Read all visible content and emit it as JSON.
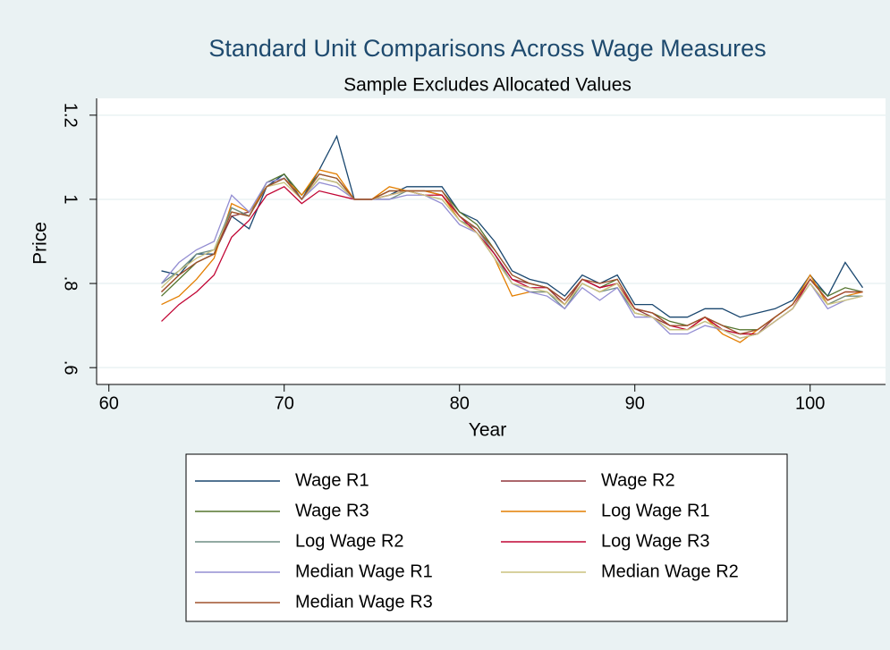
{
  "chart_data": {
    "type": "line",
    "title": "Standard Unit Comparisons Across Wage Measures",
    "subtitle": "Sample Excludes Allocated Values",
    "xlabel": "Year",
    "ylabel": "Price",
    "x": [
      63,
      64,
      65,
      66,
      67,
      68,
      69,
      70,
      71,
      72,
      73,
      74,
      75,
      76,
      77,
      78,
      79,
      80,
      81,
      82,
      83,
      84,
      85,
      86,
      87,
      88,
      89,
      90,
      91,
      92,
      93,
      94,
      95,
      96,
      97,
      98,
      99,
      100,
      101,
      102,
      103
    ],
    "xlim": [
      59.3,
      104.3
    ],
    "xticks": [
      60,
      70,
      80,
      90,
      100
    ],
    "ylim": [
      0.56,
      1.24
    ],
    "yticks": [
      {
        "value": 0.6,
        "label": ".6"
      },
      {
        "value": 0.8,
        "label": ".8"
      },
      1,
      1.2
    ],
    "grid": true,
    "series": [
      {
        "name": "Wage R1",
        "color": "#1a476f",
        "values": [
          0.83,
          0.82,
          0.87,
          0.87,
          0.96,
          0.93,
          1.03,
          1.06,
          1.0,
          1.07,
          1.15,
          1.0,
          1.0,
          1.01,
          1.03,
          1.03,
          1.03,
          0.97,
          0.95,
          0.9,
          0.83,
          0.81,
          0.8,
          0.77,
          0.82,
          0.8,
          0.82,
          0.75,
          0.75,
          0.72,
          0.72,
          0.74,
          0.74,
          0.72,
          0.73,
          0.74,
          0.76,
          0.82,
          0.77,
          0.85,
          0.79
        ]
      },
      {
        "name": "Wage R2",
        "color": "#90353b",
        "values": [
          0.78,
          0.82,
          0.85,
          0.87,
          0.96,
          0.97,
          1.03,
          1.05,
          1.0,
          1.05,
          1.04,
          1.0,
          1.0,
          1.02,
          1.02,
          1.02,
          1.01,
          0.96,
          0.93,
          0.87,
          0.81,
          0.8,
          0.79,
          0.75,
          0.81,
          0.79,
          0.8,
          0.74,
          0.72,
          0.7,
          0.7,
          0.72,
          0.69,
          0.68,
          0.68,
          0.72,
          0.75,
          0.81,
          0.76,
          0.78,
          0.78
        ]
      },
      {
        "name": "Wage R3",
        "color": "#55752f",
        "values": [
          0.77,
          0.81,
          0.85,
          0.87,
          0.98,
          0.96,
          1.04,
          1.06,
          1.01,
          1.06,
          1.05,
          1.0,
          1.0,
          1.02,
          1.02,
          1.02,
          1.02,
          0.97,
          0.94,
          0.88,
          0.82,
          0.8,
          0.79,
          0.76,
          0.81,
          0.79,
          0.81,
          0.74,
          0.73,
          0.71,
          0.7,
          0.72,
          0.7,
          0.69,
          0.69,
          0.72,
          0.75,
          0.81,
          0.77,
          0.79,
          0.78
        ]
      },
      {
        "name": "Log Wage R1",
        "color": "#e37e00",
        "values": [
          0.75,
          0.77,
          0.81,
          0.86,
          0.99,
          0.97,
          1.03,
          1.05,
          1.01,
          1.07,
          1.06,
          1.0,
          1.0,
          1.03,
          1.02,
          1.02,
          1.01,
          0.95,
          0.92,
          0.86,
          0.77,
          0.78,
          0.78,
          0.75,
          0.8,
          0.78,
          0.8,
          0.73,
          0.72,
          0.69,
          0.69,
          0.72,
          0.68,
          0.66,
          0.69,
          0.72,
          0.75,
          0.82,
          0.75,
          0.77,
          0.78
        ]
      },
      {
        "name": "Log Wage R2",
        "color": "#6e8e84",
        "values": [
          0.8,
          0.83,
          0.87,
          0.88,
          0.98,
          0.96,
          1.03,
          1.05,
          1.0,
          1.05,
          1.04,
          1.0,
          1.0,
          1.0,
          1.02,
          1.01,
          1.0,
          0.95,
          0.93,
          0.87,
          0.8,
          0.78,
          0.78,
          0.74,
          0.8,
          0.78,
          0.79,
          0.73,
          0.72,
          0.69,
          0.69,
          0.71,
          0.69,
          0.67,
          0.68,
          0.71,
          0.74,
          0.8,
          0.75,
          0.77,
          0.77
        ]
      },
      {
        "name": "Log Wage R3",
        "color": "#c10534",
        "values": [
          0.71,
          0.75,
          0.78,
          0.82,
          0.91,
          0.95,
          1.01,
          1.03,
          0.99,
          1.02,
          1.01,
          1.0,
          1.0,
          1.01,
          1.02,
          1.01,
          1.01,
          0.96,
          0.92,
          0.87,
          0.81,
          0.79,
          0.79,
          0.76,
          0.81,
          0.79,
          0.8,
          0.74,
          0.73,
          0.7,
          0.69,
          0.72,
          0.69,
          0.68,
          0.68,
          0.71,
          0.74,
          0.81,
          0.76,
          0.78,
          0.78
        ]
      },
      {
        "name": "Median Wage R1",
        "color": "#938dd2",
        "values": [
          0.8,
          0.85,
          0.88,
          0.9,
          1.01,
          0.97,
          1.04,
          1.05,
          1.0,
          1.04,
          1.03,
          1.0,
          1.0,
          1.0,
          1.01,
          1.01,
          0.99,
          0.94,
          0.92,
          0.86,
          0.8,
          0.78,
          0.77,
          0.74,
          0.79,
          0.76,
          0.79,
          0.72,
          0.72,
          0.68,
          0.68,
          0.7,
          0.69,
          0.67,
          0.68,
          0.71,
          0.74,
          0.8,
          0.74,
          0.76,
          0.77
        ]
      },
      {
        "name": "Median Wage R2",
        "color": "#cac27e",
        "values": [
          0.79,
          0.83,
          0.86,
          0.88,
          0.97,
          0.96,
          1.03,
          1.04,
          1.0,
          1.05,
          1.04,
          1.0,
          1.0,
          1.01,
          1.02,
          1.01,
          1.0,
          0.95,
          0.92,
          0.86,
          0.8,
          0.79,
          0.78,
          0.75,
          0.8,
          0.78,
          0.8,
          0.73,
          0.72,
          0.69,
          0.69,
          0.71,
          0.69,
          0.67,
          0.68,
          0.71,
          0.74,
          0.8,
          0.75,
          0.76,
          0.77
        ]
      },
      {
        "name": "Median Wage R3",
        "color": "#a0522d",
        "values": [
          0.78,
          0.82,
          0.85,
          0.87,
          0.97,
          0.96,
          1.03,
          1.05,
          1.0,
          1.06,
          1.05,
          1.0,
          1.0,
          1.02,
          1.02,
          1.02,
          1.02,
          0.96,
          0.93,
          0.88,
          0.82,
          0.8,
          0.79,
          0.76,
          0.81,
          0.8,
          0.81,
          0.74,
          0.73,
          0.7,
          0.7,
          0.72,
          0.7,
          0.68,
          0.69,
          0.72,
          0.75,
          0.81,
          0.76,
          0.78,
          0.78
        ]
      }
    ]
  }
}
